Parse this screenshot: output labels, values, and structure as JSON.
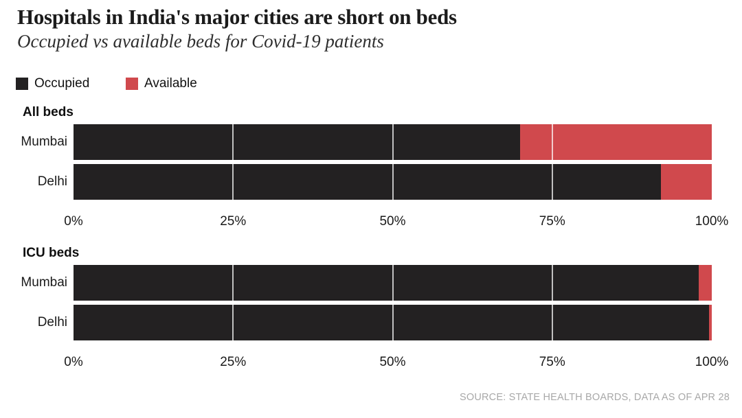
{
  "page": {
    "background": "#ffffff"
  },
  "chart_data": {
    "type": "bar",
    "orientation": "horizontal-stacked",
    "title": "Hospitals in India's major cities are short on beds",
    "subtitle": "Occupied vs available beds for Covid-19 patients",
    "legend": [
      {
        "label": "Occupied",
        "color": "#232122"
      },
      {
        "label": "Available",
        "color": "#d0494d"
      }
    ],
    "xlim": [
      0,
      100
    ],
    "axis_ticks": [
      {
        "label": "0%",
        "value": 0
      },
      {
        "label": "25%",
        "value": 25
      },
      {
        "label": "50%",
        "value": 50
      },
      {
        "label": "75%",
        "value": 75
      },
      {
        "label": "100%",
        "value": 100
      }
    ],
    "gridlines": [
      25,
      50,
      75
    ],
    "grid_color": "rgba(255,255,255,0.72)",
    "sections": [
      {
        "label": "All beds",
        "categories": [
          "Mumbai",
          "Delhi"
        ],
        "series": [
          {
            "name": "Occupied",
            "values": [
              70,
              92
            ]
          },
          {
            "name": "Available",
            "values": [
              30,
              8
            ]
          }
        ]
      },
      {
        "label": "ICU beds",
        "categories": [
          "Mumbai",
          "Delhi"
        ],
        "series": [
          {
            "name": "Occupied",
            "values": [
              98,
              99.6
            ]
          },
          {
            "name": "Available",
            "values": [
              2,
              0.4
            ]
          }
        ]
      }
    ],
    "source": "SOURCE: STATE HEALTH BOARDS, DATA AS OF APR 28"
  }
}
